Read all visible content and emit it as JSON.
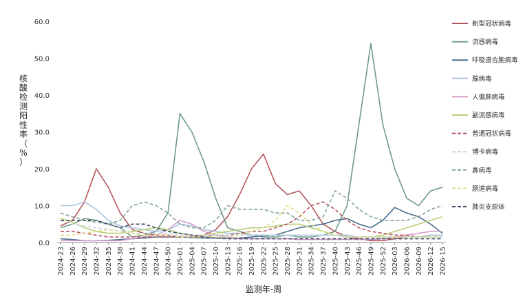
{
  "chart_data": {
    "type": "line",
    "title": "",
    "xlabel": "监测年-周",
    "ylabel": "核酸检测阳性率（%）",
    "ylim": [
      0,
      60
    ],
    "yticks": [
      "0.0",
      "10.0",
      "20.0",
      "30.0",
      "40.0",
      "50.0",
      "60.0"
    ],
    "grid": false,
    "legend_position": "right",
    "categories": [
      "2024-23",
      "2024-26",
      "2024-29",
      "2024-32",
      "2024-35",
      "2024-38",
      "2024-41",
      "2024-44",
      "2024-47",
      "2024-50",
      "2025-01",
      "2025-04",
      "2025-07",
      "2025-10",
      "2025-13",
      "2025-16",
      "2025-19",
      "2025-22",
      "2025-25",
      "2025-28",
      "2025-31",
      "2025-34",
      "2025-37",
      "2025-40",
      "2025-43",
      "2025-46",
      "2025-49",
      "2025-52",
      "2026-03",
      "2026-06",
      "2026-09",
      "2026-12",
      "2026-15"
    ],
    "series": [
      {
        "name": "新型冠状病毒",
        "color": "#b5555b",
        "dash": "solid",
        "values": [
          4.5,
          6,
          11,
          20,
          15,
          8,
          3.5,
          2.5,
          2,
          2,
          1.5,
          1.5,
          2,
          3.5,
          7,
          13,
          20,
          24,
          16,
          13,
          14,
          10,
          5,
          3,
          1.5,
          1,
          0.5,
          0.5,
          1,
          1.5,
          1.5,
          2,
          2
        ]
      },
      {
        "name": "流感病毒",
        "color": "#6f9a88",
        "dash": "solid",
        "values": [
          4,
          5,
          6.5,
          6,
          5,
          4,
          1.5,
          2,
          3,
          8,
          35,
          30,
          22,
          12,
          4,
          3,
          2,
          1.5,
          1.5,
          2,
          1.5,
          1.5,
          2,
          3,
          10,
          32,
          54,
          32,
          20,
          12,
          10,
          14,
          15
        ]
      },
      {
        "name": "呼吸道合胞病毒",
        "color": "#4a6c8c",
        "dash": "solid",
        "values": [
          1,
          0.8,
          0.5,
          0.5,
          0.6,
          0.8,
          1,
          1.2,
          1.5,
          1.5,
          1.5,
          1.3,
          1.2,
          1.2,
          1.2,
          1.2,
          1.5,
          1.8,
          2,
          3,
          4,
          4.5,
          5,
          6,
          6.5,
          5,
          4,
          6,
          9.5,
          8,
          7,
          5,
          2.5
        ]
      },
      {
        "name": "腺病毒",
        "color": "#a9c4df",
        "dash": "solid",
        "values": [
          10,
          10,
          11,
          9,
          6,
          4.5,
          4,
          3.5,
          3,
          3.5,
          5,
          4.5,
          3.5,
          3,
          2.5,
          2.5,
          2,
          2,
          2,
          2,
          2,
          2,
          2,
          2,
          2,
          1.5,
          1.5,
          1.5,
          1.5,
          1.5,
          1.5,
          2,
          2
        ]
      },
      {
        "name": "人偏肺病毒",
        "color": "#d79ccb",
        "dash": "solid",
        "values": [
          0.5,
          0.5,
          0.5,
          0.5,
          0.5,
          0.5,
          1,
          1.5,
          2,
          3.5,
          6,
          5,
          3,
          2,
          1.5,
          1,
          1,
          1,
          1,
          1,
          0.8,
          0.8,
          0.8,
          0.8,
          0.8,
          0.8,
          0.8,
          1,
          1.5,
          2,
          2.5,
          3,
          3
        ]
      },
      {
        "name": "副流感病毒",
        "color": "#b8cf7a",
        "dash": "solid",
        "values": [
          6.5,
          5.5,
          4,
          3,
          2.5,
          2.5,
          3,
          3.5,
          4,
          3.5,
          2.5,
          2,
          2,
          2.5,
          3,
          3.5,
          4,
          4,
          4.5,
          5,
          5,
          4,
          3,
          2,
          1.5,
          1.5,
          1.5,
          2,
          3,
          4,
          5,
          6,
          7
        ]
      },
      {
        "name": "普通冠状病毒",
        "color": "#b5555b",
        "dash": "dash",
        "values": [
          3,
          3,
          2.5,
          2,
          1.5,
          1.5,
          1.5,
          1.5,
          1.5,
          1.5,
          1.5,
          1.5,
          1.5,
          2,
          2,
          2.5,
          3,
          3,
          4,
          5,
          7,
          10,
          11,
          9,
          6,
          4,
          3,
          2.5,
          2,
          2,
          1.5,
          1.5,
          1.5
        ]
      },
      {
        "name": "博卡病毒",
        "color": "#c5d5e6",
        "dash": "dash",
        "values": [
          6,
          5,
          4.5,
          4,
          3.5,
          3,
          2.5,
          2.5,
          2.5,
          2.5,
          2,
          2,
          2,
          2,
          2,
          2,
          2,
          2,
          2,
          2,
          2,
          2,
          2,
          2,
          1.5,
          1.5,
          1.5,
          1.5,
          1.5,
          1.5,
          1.5,
          1.5,
          1.5
        ]
      },
      {
        "name": "鼻病毒",
        "color": "#7fa493",
        "dash": "dash",
        "values": [
          8,
          7,
          6,
          5.5,
          5,
          6,
          10,
          11,
          10,
          8,
          5,
          4,
          4,
          6,
          10,
          9,
          9,
          9,
          8,
          8,
          6,
          6,
          7,
          14,
          12,
          9,
          7,
          6,
          6,
          6,
          7,
          9,
          10
        ]
      },
      {
        "name": "肠道病毒",
        "color": "#e0e08a",
        "dash": "dash",
        "values": [
          2,
          2,
          2.5,
          3,
          3.5,
          3,
          2.5,
          2,
          2,
          2,
          1.5,
          1.5,
          1.5,
          1.5,
          1.5,
          2,
          3,
          4,
          6,
          10,
          8,
          5,
          3,
          2,
          1.5,
          1.5,
          1.5,
          1.5,
          1.5,
          1.5,
          1.5,
          1.5,
          1.5
        ]
      },
      {
        "name": "肺炎支原体",
        "color": "#3f4f6a",
        "dash": "dash",
        "values": [
          6,
          6,
          6,
          6,
          5,
          4,
          5,
          5,
          4,
          3,
          2.5,
          2,
          1.5,
          1.2,
          1,
          1,
          1,
          1,
          1,
          1,
          1,
          1,
          1,
          1,
          1,
          1,
          1,
          1,
          1,
          1,
          1,
          1,
          1
        ]
      }
    ]
  }
}
